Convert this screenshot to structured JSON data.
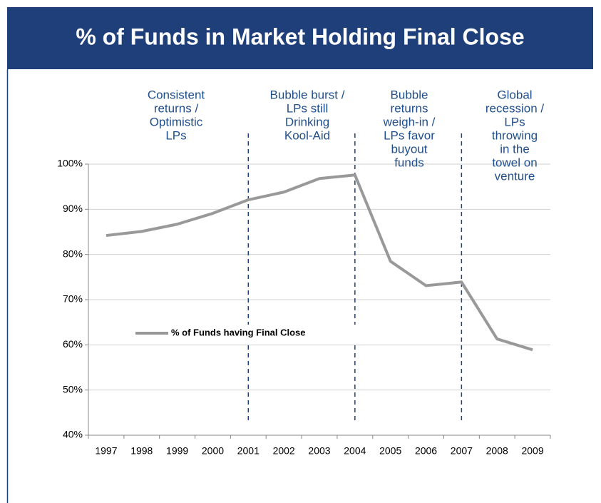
{
  "chart_data": {
    "type": "line",
    "title": "% of Funds in Market Holding Final Close",
    "categories": [
      "1997",
      "1998",
      "1999",
      "2000",
      "2001",
      "2002",
      "2003",
      "2004",
      "2005",
      "2006",
      "2007",
      "2008",
      "2009"
    ],
    "series": [
      {
        "name": "% of Funds having Final Close",
        "color": "#999999",
        "values": [
          84.2,
          85.1,
          86.7,
          89.1,
          92.1,
          93.8,
          96.8,
          97.6,
          78.5,
          73.1,
          73.9,
          61.3,
          58.9
        ]
      }
    ],
    "ylim": [
      40,
      100
    ],
    "yticks": [
      {
        "value": 40,
        "label": "40%"
      },
      {
        "value": 50,
        "label": "50%"
      },
      {
        "value": 60,
        "label": "60%"
      },
      {
        "value": 70,
        "label": "70%"
      },
      {
        "value": 80,
        "label": "80%"
      },
      {
        "value": 90,
        "label": "90%"
      },
      {
        "value": 100,
        "label": "100%"
      }
    ],
    "grid": true,
    "dividers": [
      "2001",
      "2004",
      "2007"
    ],
    "annotations": [
      [
        "Consistent",
        "returns /",
        "Optimistic",
        "LPs"
      ],
      [
        "Bubble burst /",
        "LPs still",
        "Drinking",
        "Kool-Aid"
      ],
      [
        "Bubble",
        "returns",
        "weigh-in /",
        "LPs favor",
        "buyout",
        "funds"
      ],
      [
        "Global",
        "recession /",
        "LPs",
        "throwing",
        "in the",
        "towel on",
        "venture"
      ]
    ]
  }
}
